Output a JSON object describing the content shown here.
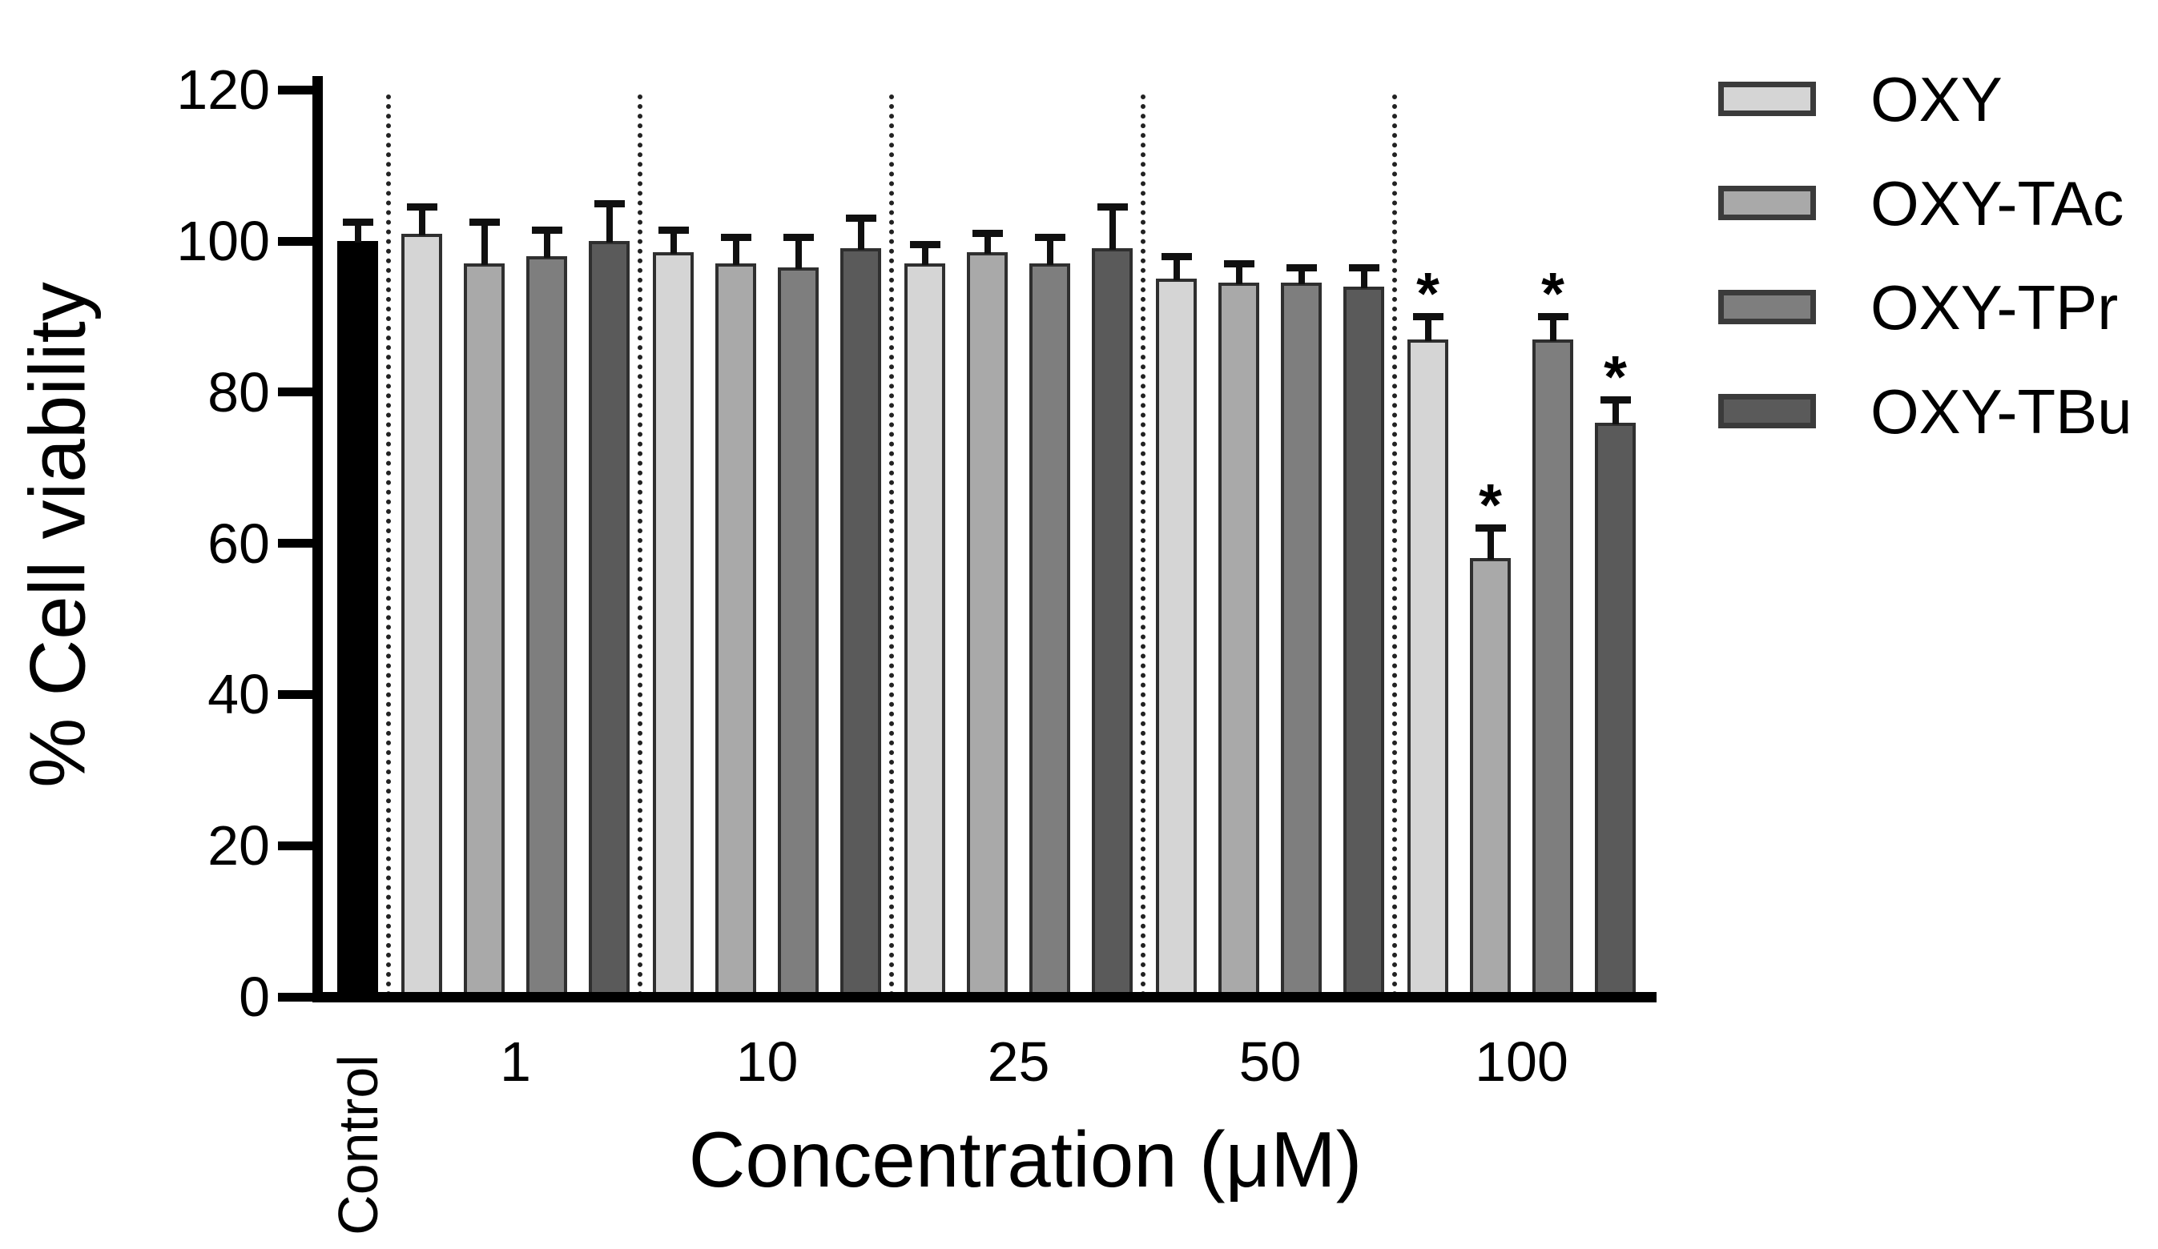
{
  "chart_data": {
    "type": "bar",
    "title": "",
    "xlabel": "Concentration (μM)",
    "ylabel": "% Cell viability",
    "ylim": [
      0,
      120
    ],
    "yticks": [
      0,
      20,
      40,
      60,
      80,
      100,
      120
    ],
    "grid": false,
    "legend_position": "upper-right",
    "error_bars": "upward SD with caps",
    "group_separators": "dotted vertical lines between concentration groups",
    "significance_marker": "*",
    "bar_outline_color": "#2f2f2f",
    "control": {
      "label": "Control",
      "value": 100,
      "error": 2,
      "color": "#000000",
      "significant": false
    },
    "categories": [
      "1",
      "10",
      "25",
      "50",
      "100"
    ],
    "series": [
      {
        "name": "OXY",
        "color": "#d5d5d5",
        "values": [
          101,
          98.5,
          97,
          95,
          87
        ],
        "errors": [
          3,
          2.5,
          2,
          2.5,
          2.5
        ],
        "significant": [
          false,
          false,
          false,
          false,
          true
        ]
      },
      {
        "name": "OXY-TAc",
        "color": "#a9a9a9",
        "values": [
          97,
          97,
          98.5,
          94.5,
          58
        ],
        "errors": [
          5,
          3,
          2,
          2,
          3.5
        ],
        "significant": [
          false,
          false,
          false,
          false,
          true
        ]
      },
      {
        "name": "OXY-TPr",
        "color": "#7e7e7e",
        "values": [
          98,
          96.5,
          97,
          94.5,
          87
        ],
        "errors": [
          3,
          3.5,
          3,
          1.5,
          2.5
        ],
        "significant": [
          false,
          false,
          false,
          false,
          true
        ]
      },
      {
        "name": "OXY-TBu",
        "color": "#5a5a5a",
        "values": [
          100,
          99,
          99,
          94,
          76
        ],
        "errors": [
          4.5,
          3.5,
          5,
          2,
          2.5
        ],
        "significant": [
          false,
          false,
          false,
          false,
          true
        ]
      }
    ]
  }
}
